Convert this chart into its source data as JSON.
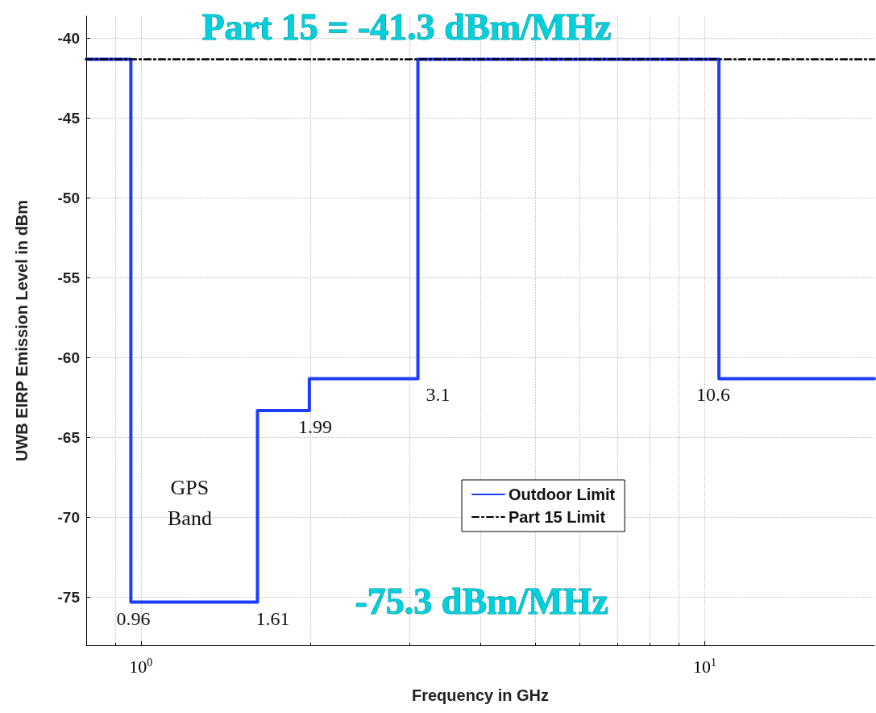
{
  "chart_data": {
    "type": "step",
    "xlabel": "Frequency in GHz",
    "ylabel": "UWB EIRP Emission Level in dBm",
    "series": [
      {
        "name": "Outdoor Limit",
        "color": "#1f3dff",
        "x": [
          0.8,
          0.96,
          1.61,
          1.99,
          3.1,
          10.6,
          20
        ],
        "values": [
          -41.3,
          -75.3,
          -63.3,
          -61.3,
          -41.3,
          -61.3,
          -61.3
        ]
      },
      {
        "name": "Part 15 Limit",
        "type": "line",
        "line_style": "dashed",
        "color": "#000000",
        "x": [
          0.8,
          20
        ],
        "values": [
          -41.3,
          -41.3
        ]
      }
    ],
    "annotations": [
      "Part 15 = -41.3 dBm/MHz",
      "-75.3 dBm/MHz",
      "GPS Band",
      {
        "text": "0.96",
        "x": 0.96,
        "y": -75.3
      },
      {
        "text": "1.61",
        "x": 1.61,
        "y": -75.3
      },
      {
        "text": "1.99",
        "x": 1.99,
        "y": -63.3
      },
      {
        "text": "3.1",
        "x": 3.1,
        "y": -61.3
      },
      {
        "text": "10.6",
        "x": 10.6,
        "y": -61.3
      }
    ],
    "log": "x",
    "xlim": [
      0.8,
      20
    ],
    "xticks": [
      {
        "value": 1,
        "label": "10$^{0}$"
      },
      {
        "value": 10,
        "label": "10$^{1}$"
      }
    ],
    "ylim": [
      -78,
      -38.6
    ],
    "yticks": [
      -40,
      -45,
      -50,
      -55,
      -60,
      -65,
      -70,
      -75
    ],
    "grid": true,
    "legend": "bottom right",
    "line_style": "solid",
    "marker": "none"
  }
}
